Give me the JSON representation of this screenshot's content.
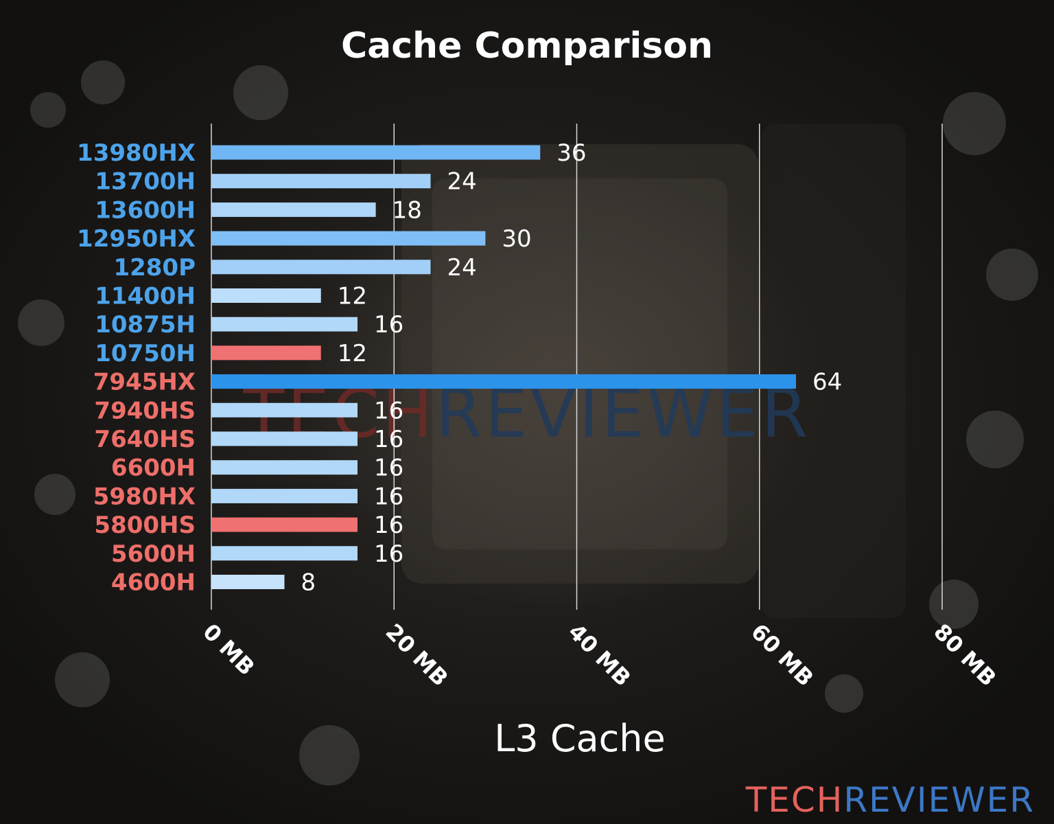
{
  "chart_data": {
    "type": "bar",
    "orientation": "horizontal",
    "title": "Cache Comparison",
    "xlabel": "L3 Cache",
    "ylabel": "",
    "xlim": [
      0,
      80
    ],
    "xticks": [
      "0 MB",
      "20 MB",
      "40 MB",
      "60 MB",
      "80 MB"
    ],
    "tick_values": [
      0,
      20,
      40,
      60,
      80
    ],
    "grid": "vertical",
    "categories": [
      "13980HX",
      "13700H",
      "13600H",
      "12950HX",
      "1280P",
      "11400H",
      "10875H",
      "10750H",
      "7945HX",
      "7940HS",
      "7640HS",
      "6600H",
      "5980HX",
      "5800HS",
      "5600H",
      "4600H"
    ],
    "values": [
      36,
      24,
      18,
      30,
      24,
      12,
      16,
      12,
      64,
      16,
      16,
      16,
      16,
      16,
      16,
      8
    ],
    "value_labels": [
      "36",
      "24",
      "18",
      "30",
      "24",
      "12",
      "16",
      "12",
      "64",
      "16",
      "16",
      "16",
      "16",
      "16",
      "16",
      "8"
    ],
    "label_colors": [
      "#4da3ea",
      "#4da3ea",
      "#4da3ea",
      "#4da3ea",
      "#4da3ea",
      "#4da3ea",
      "#4da3ea",
      "#4da3ea",
      "#ee6f6a",
      "#ee6f6a",
      "#ee6f6a",
      "#ee6f6a",
      "#ee6f6a",
      "#ee6f6a",
      "#ee6f6a",
      "#ee6f6a"
    ],
    "bar_colors": [
      "#70b6f4",
      "#a2cff7",
      "#acd5f8",
      "#80bff6",
      "#a2cff7",
      "#bcdefa",
      "#b1d8f8",
      "#f07171",
      "#2c93ea",
      "#b1d8f8",
      "#b1d8f8",
      "#b1d8f8",
      "#b1d8f8",
      "#f07171",
      "#b1d8f8",
      "#c6e3fb"
    ],
    "watermark": {
      "part1": "TECH",
      "part2": "REVIEWER",
      "color1": "#6e2a28",
      "color2": "#213a5a"
    }
  },
  "brand": {
    "part1": "TECH",
    "part2": "REVIEWER",
    "color1": "#e5625d",
    "color2": "#3d78c6"
  }
}
